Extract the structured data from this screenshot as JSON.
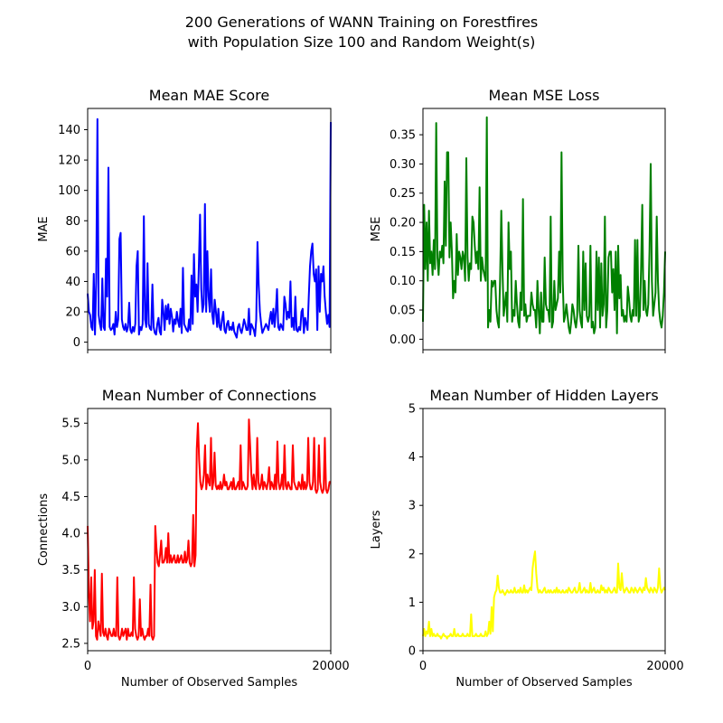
{
  "figure": {
    "title_line1": "200 Generations of WANN Training on Forestfires",
    "title_line2": "with Population Size 100 and Random Weight(s)"
  },
  "chart_data": [
    {
      "type": "line",
      "title": "Mean MAE Score",
      "xlabel": "",
      "ylabel": "MAE",
      "color": "#0000ff",
      "xlim": [
        0,
        20000
      ],
      "ylim": [
        -5,
        154
      ],
      "yticks": [
        0,
        20,
        40,
        60,
        80,
        100,
        120,
        140
      ],
      "xticks": [],
      "values": [
        32,
        20,
        18,
        10,
        8,
        45,
        5,
        40,
        147,
        18,
        12,
        8,
        42,
        10,
        8,
        55,
        30,
        115,
        10,
        8,
        9,
        12,
        5,
        20,
        10,
        15,
        68,
        72,
        15,
        10,
        8,
        12,
        7,
        10,
        26,
        8,
        6,
        10,
        7,
        12,
        50,
        60,
        5,
        10,
        8,
        12,
        83,
        15,
        10,
        52,
        12,
        9,
        8,
        38,
        10,
        6,
        5,
        12,
        16,
        7,
        5,
        28,
        20,
        8,
        24,
        15,
        25,
        12,
        22,
        17,
        7,
        15,
        12,
        20,
        14,
        10,
        22,
        6,
        49,
        12,
        10,
        8,
        7,
        15,
        8,
        44,
        12,
        58,
        30,
        38,
        20,
        50,
        84,
        35,
        20,
        25,
        91,
        20,
        60,
        30,
        20,
        48,
        18,
        12,
        28,
        20,
        10,
        22,
        10,
        8,
        15,
        20,
        8,
        6,
        12,
        14,
        8,
        10,
        8,
        13,
        7,
        5,
        3,
        10,
        12,
        8,
        6,
        10,
        15,
        12,
        8,
        8,
        22,
        5,
        12,
        10,
        8,
        4,
        15,
        66,
        38,
        20,
        12,
        6,
        8,
        10,
        12,
        10,
        8,
        15,
        20,
        12,
        22,
        10,
        20,
        35,
        10,
        8,
        12,
        10,
        8,
        30,
        25,
        15,
        20,
        16,
        40,
        10,
        16,
        8,
        30,
        8,
        7,
        10,
        8,
        20,
        22,
        6,
        16,
        12,
        8,
        30,
        50,
        60,
        65,
        45,
        40,
        48,
        8,
        50,
        20,
        45,
        40,
        50,
        30,
        20,
        12,
        18,
        10,
        145
      ]
    },
    {
      "type": "line",
      "title": "Mean MSE Loss",
      "xlabel": "",
      "ylabel": "MSE",
      "color": "#008000",
      "xlim": [
        0,
        20000
      ],
      "ylim": [
        -0.018,
        0.395
      ],
      "yticks": [
        0.0,
        0.05,
        0.1,
        0.15,
        0.2,
        0.25,
        0.3,
        0.35
      ],
      "xticks": [],
      "values": [
        0.03,
        0.23,
        0.12,
        0.2,
        0.1,
        0.22,
        0.13,
        0.15,
        0.11,
        0.17,
        0.12,
        0.37,
        0.14,
        0.11,
        0.15,
        0.14,
        0.16,
        0.13,
        0.27,
        0.16,
        0.32,
        0.32,
        0.14,
        0.2,
        0.15,
        0.07,
        0.1,
        0.08,
        0.18,
        0.11,
        0.15,
        0.14,
        0.12,
        0.15,
        0.14,
        0.1,
        0.31,
        0.14,
        0.1,
        0.13,
        0.12,
        0.21,
        0.2,
        0.16,
        0.13,
        0.15,
        0.12,
        0.26,
        0.1,
        0.14,
        0.12,
        0.11,
        0.1,
        0.38,
        0.02,
        0.05,
        0.03,
        0.1,
        0.09,
        0.1,
        0.1,
        0.05,
        0.03,
        0.02,
        0.1,
        0.22,
        0.12,
        0.04,
        0.06,
        0.08,
        0.03,
        0.2,
        0.12,
        0.15,
        0.03,
        0.05,
        0.04,
        0.1,
        0.06,
        0.03,
        0.02,
        0.08,
        0.05,
        0.24,
        0.04,
        0.06,
        0.03,
        0.04,
        0.04,
        0.04,
        0.08,
        0.06,
        0.05,
        0.05,
        0.02,
        0.1,
        0.05,
        0.01,
        0.08,
        0.03,
        0.03,
        0.14,
        0.06,
        0.05,
        0.05,
        0.03,
        0.21,
        0.02,
        0.03,
        0.1,
        0.05,
        0.06,
        0.07,
        0.15,
        0.08,
        0.32,
        0.1,
        0.03,
        0.04,
        0.06,
        0.04,
        0.02,
        0.01,
        0.03,
        0.06,
        0.05,
        0.03,
        0.02,
        0.04,
        0.16,
        0.05,
        0.03,
        0.02,
        0.15,
        0.05,
        0.13,
        0.04,
        0.03,
        0.04,
        0.16,
        0.02,
        0.03,
        0.01,
        0.02,
        0.15,
        0.05,
        0.14,
        0.02,
        0.13,
        0.04,
        0.06,
        0.21,
        0.02,
        0.05,
        0.14,
        0.15,
        0.15,
        0.08,
        0.12,
        0.05,
        0.15,
        0.01,
        0.16,
        0.07,
        0.11,
        0.04,
        0.05,
        0.03,
        0.04,
        0.03,
        0.09,
        0.07,
        0.04,
        0.03,
        0.05,
        0.04,
        0.17,
        0.04,
        0.17,
        0.03,
        0.04,
        0.12,
        0.23,
        0.05,
        0.1,
        0.05,
        0.04,
        0.06,
        0.15,
        0.3,
        0.1,
        0.04,
        0.06,
        0.08,
        0.21,
        0.1,
        0.05,
        0.03,
        0.02,
        0.04,
        0.08,
        0.15
      ]
    },
    {
      "type": "line",
      "title": "Mean Number of Connections",
      "xlabel": "Number of Observed Samples",
      "ylabel": "Connections",
      "color": "#ff0000",
      "xlim": [
        0,
        20000
      ],
      "ylim": [
        2.4,
        5.7
      ],
      "yticks": [
        2.5,
        3.0,
        3.5,
        4.0,
        4.5,
        5.0,
        5.5
      ],
      "xticks": [
        0,
        20000
      ],
      "values": [
        4.1,
        3.2,
        2.8,
        3.4,
        2.7,
        2.8,
        3.5,
        2.6,
        2.55,
        2.8,
        2.7,
        2.6,
        3.45,
        2.65,
        2.6,
        2.7,
        2.6,
        2.55,
        2.7,
        2.65,
        2.6,
        2.6,
        2.7,
        2.6,
        2.6,
        3.4,
        2.6,
        2.55,
        2.6,
        2.7,
        2.6,
        2.65,
        2.7,
        2.55,
        2.7,
        2.6,
        2.6,
        2.65,
        2.6,
        3.4,
        2.7,
        2.6,
        2.55,
        2.6,
        3.1,
        2.6,
        2.7,
        2.6,
        2.55,
        2.6,
        2.6,
        2.7,
        2.6,
        3.3,
        2.6,
        2.55,
        2.6,
        4.1,
        3.8,
        3.6,
        3.55,
        3.7,
        3.9,
        3.6,
        3.6,
        3.65,
        3.8,
        3.6,
        4.0,
        3.6,
        3.7,
        3.6,
        3.65,
        3.7,
        3.6,
        3.6,
        3.7,
        3.6,
        3.65,
        3.7,
        3.6,
        3.6,
        3.75,
        3.6,
        3.65,
        3.9,
        3.6,
        3.55,
        3.6,
        4.25,
        3.55,
        3.7,
        5.15,
        5.5,
        5.0,
        4.7,
        4.6,
        4.65,
        4.8,
        5.2,
        4.6,
        4.8,
        4.7,
        4.65,
        5.3,
        4.6,
        4.7,
        5.1,
        4.65,
        4.6,
        4.65,
        4.6,
        4.7,
        4.6,
        4.65,
        4.8,
        4.65,
        4.7,
        4.6,
        4.6,
        4.65,
        4.7,
        4.6,
        4.75,
        4.6,
        4.6,
        4.65,
        4.7,
        4.6,
        5.2,
        4.6,
        4.7,
        4.65,
        4.6,
        4.6,
        4.65,
        5.55,
        5.2,
        4.8,
        4.6,
        4.8,
        4.65,
        4.6,
        5.3,
        4.7,
        4.6,
        4.65,
        4.8,
        4.6,
        4.7,
        4.65,
        4.6,
        4.7,
        4.9,
        4.6,
        4.7,
        4.65,
        4.6,
        4.8,
        4.6,
        5.25,
        4.7,
        4.6,
        4.65,
        4.8,
        4.6,
        5.2,
        4.65,
        4.6,
        4.7,
        4.65,
        4.6,
        4.6,
        5.2,
        4.7,
        4.65,
        4.6,
        4.6,
        4.7,
        4.65,
        4.6,
        4.8,
        4.6,
        4.7,
        4.6,
        4.65,
        5.3,
        4.7,
        4.6,
        4.6,
        4.7,
        5.3,
        4.6,
        4.55,
        4.6,
        5.2,
        4.7,
        4.6,
        4.55,
        4.6,
        5.3,
        4.6,
        4.55,
        4.6,
        4.7,
        4.7
      ]
    },
    {
      "type": "line",
      "title": "Mean Number of Hidden Layers",
      "xlabel": "Number of Observed Samples",
      "ylabel": "Layers",
      "color": "#ffff00",
      "xlim": [
        0,
        20000
      ],
      "ylim": [
        0,
        5
      ],
      "yticks": [
        0,
        1,
        2,
        3,
        4,
        5
      ],
      "xticks": [
        0,
        20000
      ],
      "values": [
        0.3,
        0.45,
        0.3,
        0.4,
        0.35,
        0.6,
        0.3,
        0.45,
        0.3,
        0.35,
        0.3,
        0.3,
        0.35,
        0.3,
        0.3,
        0.25,
        0.3,
        0.35,
        0.3,
        0.3,
        0.25,
        0.3,
        0.3,
        0.35,
        0.3,
        0.3,
        0.45,
        0.3,
        0.3,
        0.35,
        0.3,
        0.3,
        0.3,
        0.35,
        0.3,
        0.3,
        0.3,
        0.35,
        0.3,
        0.3,
        0.75,
        0.3,
        0.3,
        0.3,
        0.35,
        0.3,
        0.3,
        0.3,
        0.35,
        0.3,
        0.3,
        0.3,
        0.4,
        0.3,
        0.35,
        0.6,
        0.35,
        0.9,
        0.4,
        1.1,
        1.2,
        1.25,
        1.55,
        1.3,
        1.2,
        1.2,
        1.25,
        1.2,
        1.15,
        1.2,
        1.25,
        1.2,
        1.2,
        1.25,
        1.2,
        1.2,
        1.3,
        1.2,
        1.2,
        1.25,
        1.2,
        1.3,
        1.2,
        1.2,
        1.35,
        1.2,
        1.25,
        1.2,
        1.25,
        1.3,
        1.25,
        1.7,
        1.9,
        2.05,
        1.6,
        1.3,
        1.2,
        1.25,
        1.2,
        1.2,
        1.25,
        1.3,
        1.2,
        1.2,
        1.25,
        1.2,
        1.25,
        1.2,
        1.2,
        1.25,
        1.2,
        1.3,
        1.2,
        1.25,
        1.2,
        1.2,
        1.25,
        1.2,
        1.2,
        1.25,
        1.2,
        1.3,
        1.25,
        1.2,
        1.2,
        1.25,
        1.3,
        1.2,
        1.2,
        1.25,
        1.4,
        1.2,
        1.2,
        1.25,
        1.3,
        1.2,
        1.25,
        1.2,
        1.2,
        1.4,
        1.2,
        1.25,
        1.3,
        1.2,
        1.2,
        1.25,
        1.2,
        1.2,
        1.35,
        1.25,
        1.3,
        1.2,
        1.25,
        1.2,
        1.3,
        1.25,
        1.2,
        1.2,
        1.25,
        1.3,
        1.2,
        1.2,
        1.8,
        1.3,
        1.25,
        1.6,
        1.3,
        1.2,
        1.25,
        1.3,
        1.25,
        1.2,
        1.2,
        1.3,
        1.25,
        1.2,
        1.3,
        1.25,
        1.2,
        1.25,
        1.3,
        1.25,
        1.2,
        1.3,
        1.25,
        1.5,
        1.3,
        1.25,
        1.2,
        1.3,
        1.25,
        1.2,
        1.3,
        1.25,
        1.2,
        1.3,
        1.7,
        1.3,
        1.2,
        1.25,
        1.3,
        1.25
      ]
    }
  ]
}
